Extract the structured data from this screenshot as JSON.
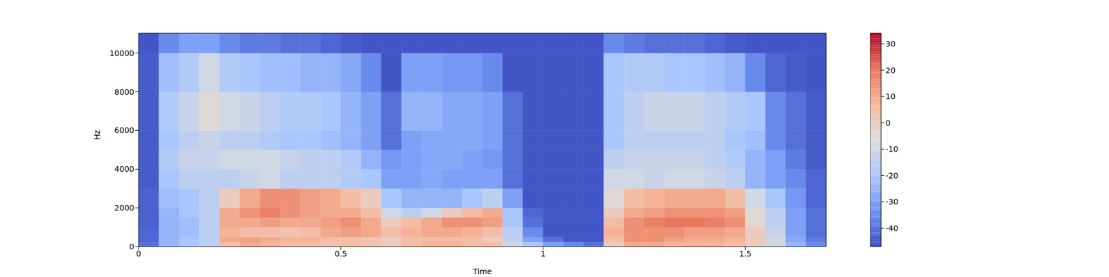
{
  "chart_data": {
    "type": "heatmap",
    "x_label": "Time",
    "y_label": "Hz",
    "xlim": [
      0,
      1.7
    ],
    "ylim": [
      0,
      11025
    ],
    "xticks": [
      0,
      0.5,
      1,
      1.5
    ],
    "yticks": [
      0,
      2000,
      4000,
      6000,
      8000,
      10000
    ],
    "time_bins": [
      0,
      0.05,
      0.1,
      0.15,
      0.2,
      0.25,
      0.3,
      0.35,
      0.4,
      0.45,
      0.5,
      0.55,
      0.6,
      0.65,
      0.7,
      0.75,
      0.8,
      0.85,
      0.9,
      0.95,
      1,
      1.05,
      1.1,
      1.15,
      1.2,
      1.25,
      1.3,
      1.35,
      1.4,
      1.45,
      1.5,
      1.55,
      1.6,
      1.65,
      1.7
    ],
    "freq_bins": [
      0,
      250,
      500,
      1000,
      1500,
      2000,
      3000,
      4000,
      5000,
      6000,
      8000,
      10000,
      11025
    ],
    "cells": [
      [
        -40,
        -25,
        -20,
        -15,
        5,
        10,
        8,
        5,
        5,
        3,
        5,
        3,
        0,
        5,
        8,
        8,
        5,
        5,
        -10,
        -20,
        -30,
        -35,
        -40,
        0,
        10,
        10,
        8,
        8,
        8,
        5,
        0,
        -10,
        -25,
        -35
      ],
      [
        -42,
        -25,
        -20,
        -15,
        10,
        12,
        10,
        8,
        8,
        5,
        5,
        3,
        0,
        5,
        5,
        5,
        5,
        0,
        -15,
        -30,
        -40,
        -45,
        -45,
        5,
        15,
        15,
        12,
        10,
        10,
        8,
        0,
        -10,
        -28,
        -38
      ],
      [
        -42,
        -25,
        -22,
        -15,
        8,
        5,
        5,
        3,
        5,
        10,
        12,
        10,
        5,
        8,
        10,
        10,
        8,
        5,
        -15,
        -35,
        -45,
        -45,
        -45,
        8,
        15,
        15,
        15,
        12,
        12,
        10,
        0,
        -12,
        -30,
        -40
      ],
      [
        -43,
        -25,
        -22,
        -15,
        10,
        10,
        12,
        10,
        10,
        12,
        15,
        10,
        0,
        5,
        10,
        15,
        15,
        12,
        -20,
        -40,
        -45,
        -45,
        -45,
        5,
        15,
        18,
        20,
        20,
        18,
        15,
        -5,
        -15,
        -30,
        -40
      ],
      [
        -43,
        -25,
        -20,
        -15,
        10,
        15,
        18,
        15,
        12,
        10,
        10,
        5,
        -10,
        -15,
        -10,
        0,
        5,
        10,
        -20,
        -42,
        -45,
        -45,
        -45,
        0,
        10,
        12,
        15,
        15,
        15,
        12,
        -5,
        -15,
        -30,
        -40
      ],
      [
        -43,
        -22,
        -20,
        -15,
        0,
        10,
        15,
        15,
        12,
        10,
        5,
        0,
        -20,
        -25,
        -25,
        -25,
        -20,
        -15,
        -30,
        -45,
        -45,
        -45,
        -45,
        -5,
        5,
        8,
        10,
        10,
        10,
        5,
        -10,
        -20,
        -32,
        -42
      ],
      [
        -44,
        -20,
        -15,
        -15,
        -15,
        -12,
        -10,
        -15,
        -15,
        -15,
        -18,
        -20,
        -30,
        -30,
        -28,
        -30,
        -30,
        -30,
        -40,
        -45,
        -45,
        -45,
        -45,
        -10,
        -10,
        -12,
        -10,
        -10,
        -12,
        -15,
        -25,
        -30,
        -35,
        -42
      ],
      [
        -44,
        -18,
        -12,
        -12,
        -10,
        -10,
        -10,
        -12,
        -15,
        -15,
        -18,
        -25,
        -32,
        -30,
        -28,
        -28,
        -30,
        -32,
        -40,
        -45,
        -45,
        -45,
        -45,
        -15,
        -12,
        -12,
        -12,
        -12,
        -15,
        -18,
        -25,
        -30,
        -38,
        -44
      ],
      [
        -44,
        -20,
        -15,
        -12,
        -15,
        -15,
        -18,
        -20,
        -20,
        -22,
        -25,
        -30,
        -40,
        -30,
        -28,
        -28,
        -28,
        -30,
        -40,
        -45,
        -45,
        -45,
        -45,
        -20,
        -15,
        -15,
        -15,
        -15,
        -15,
        -20,
        -22,
        -35,
        -40,
        -44
      ],
      [
        -44,
        -18,
        -12,
        -5,
        -10,
        -12,
        -15,
        -18,
        -18,
        -20,
        -25,
        -30,
        -40,
        -25,
        -25,
        -28,
        -28,
        -30,
        -40,
        -45,
        -45,
        -45,
        -45,
        -20,
        -15,
        -12,
        -12,
        -12,
        -15,
        -18,
        -20,
        -35,
        -40,
        -44
      ],
      [
        -44,
        -22,
        -18,
        -10,
        -18,
        -20,
        -22,
        -22,
        -25,
        -25,
        -28,
        -35,
        -45,
        -30,
        -30,
        -32,
        -32,
        -35,
        -45,
        -45,
        -45,
        -45,
        -45,
        -20,
        -18,
        -18,
        -20,
        -20,
        -22,
        -25,
        -35,
        -42,
        -44,
        -45
      ],
      [
        -45,
        -35,
        -30,
        -30,
        -35,
        -38,
        -38,
        -40,
        -40,
        -42,
        -44,
        -45,
        -45,
        -45,
        -45,
        -45,
        -45,
        -45,
        -45,
        -45,
        -45,
        -45,
        -45,
        -35,
        -38,
        -40,
        -40,
        -40,
        -42,
        -44,
        -45,
        -45,
        -45,
        -45
      ]
    ],
    "colorbar_range": [
      -47,
      34
    ],
    "colorbar_ticks": [
      -40,
      -30,
      -20,
      -10,
      0,
      10,
      20,
      30
    ]
  }
}
